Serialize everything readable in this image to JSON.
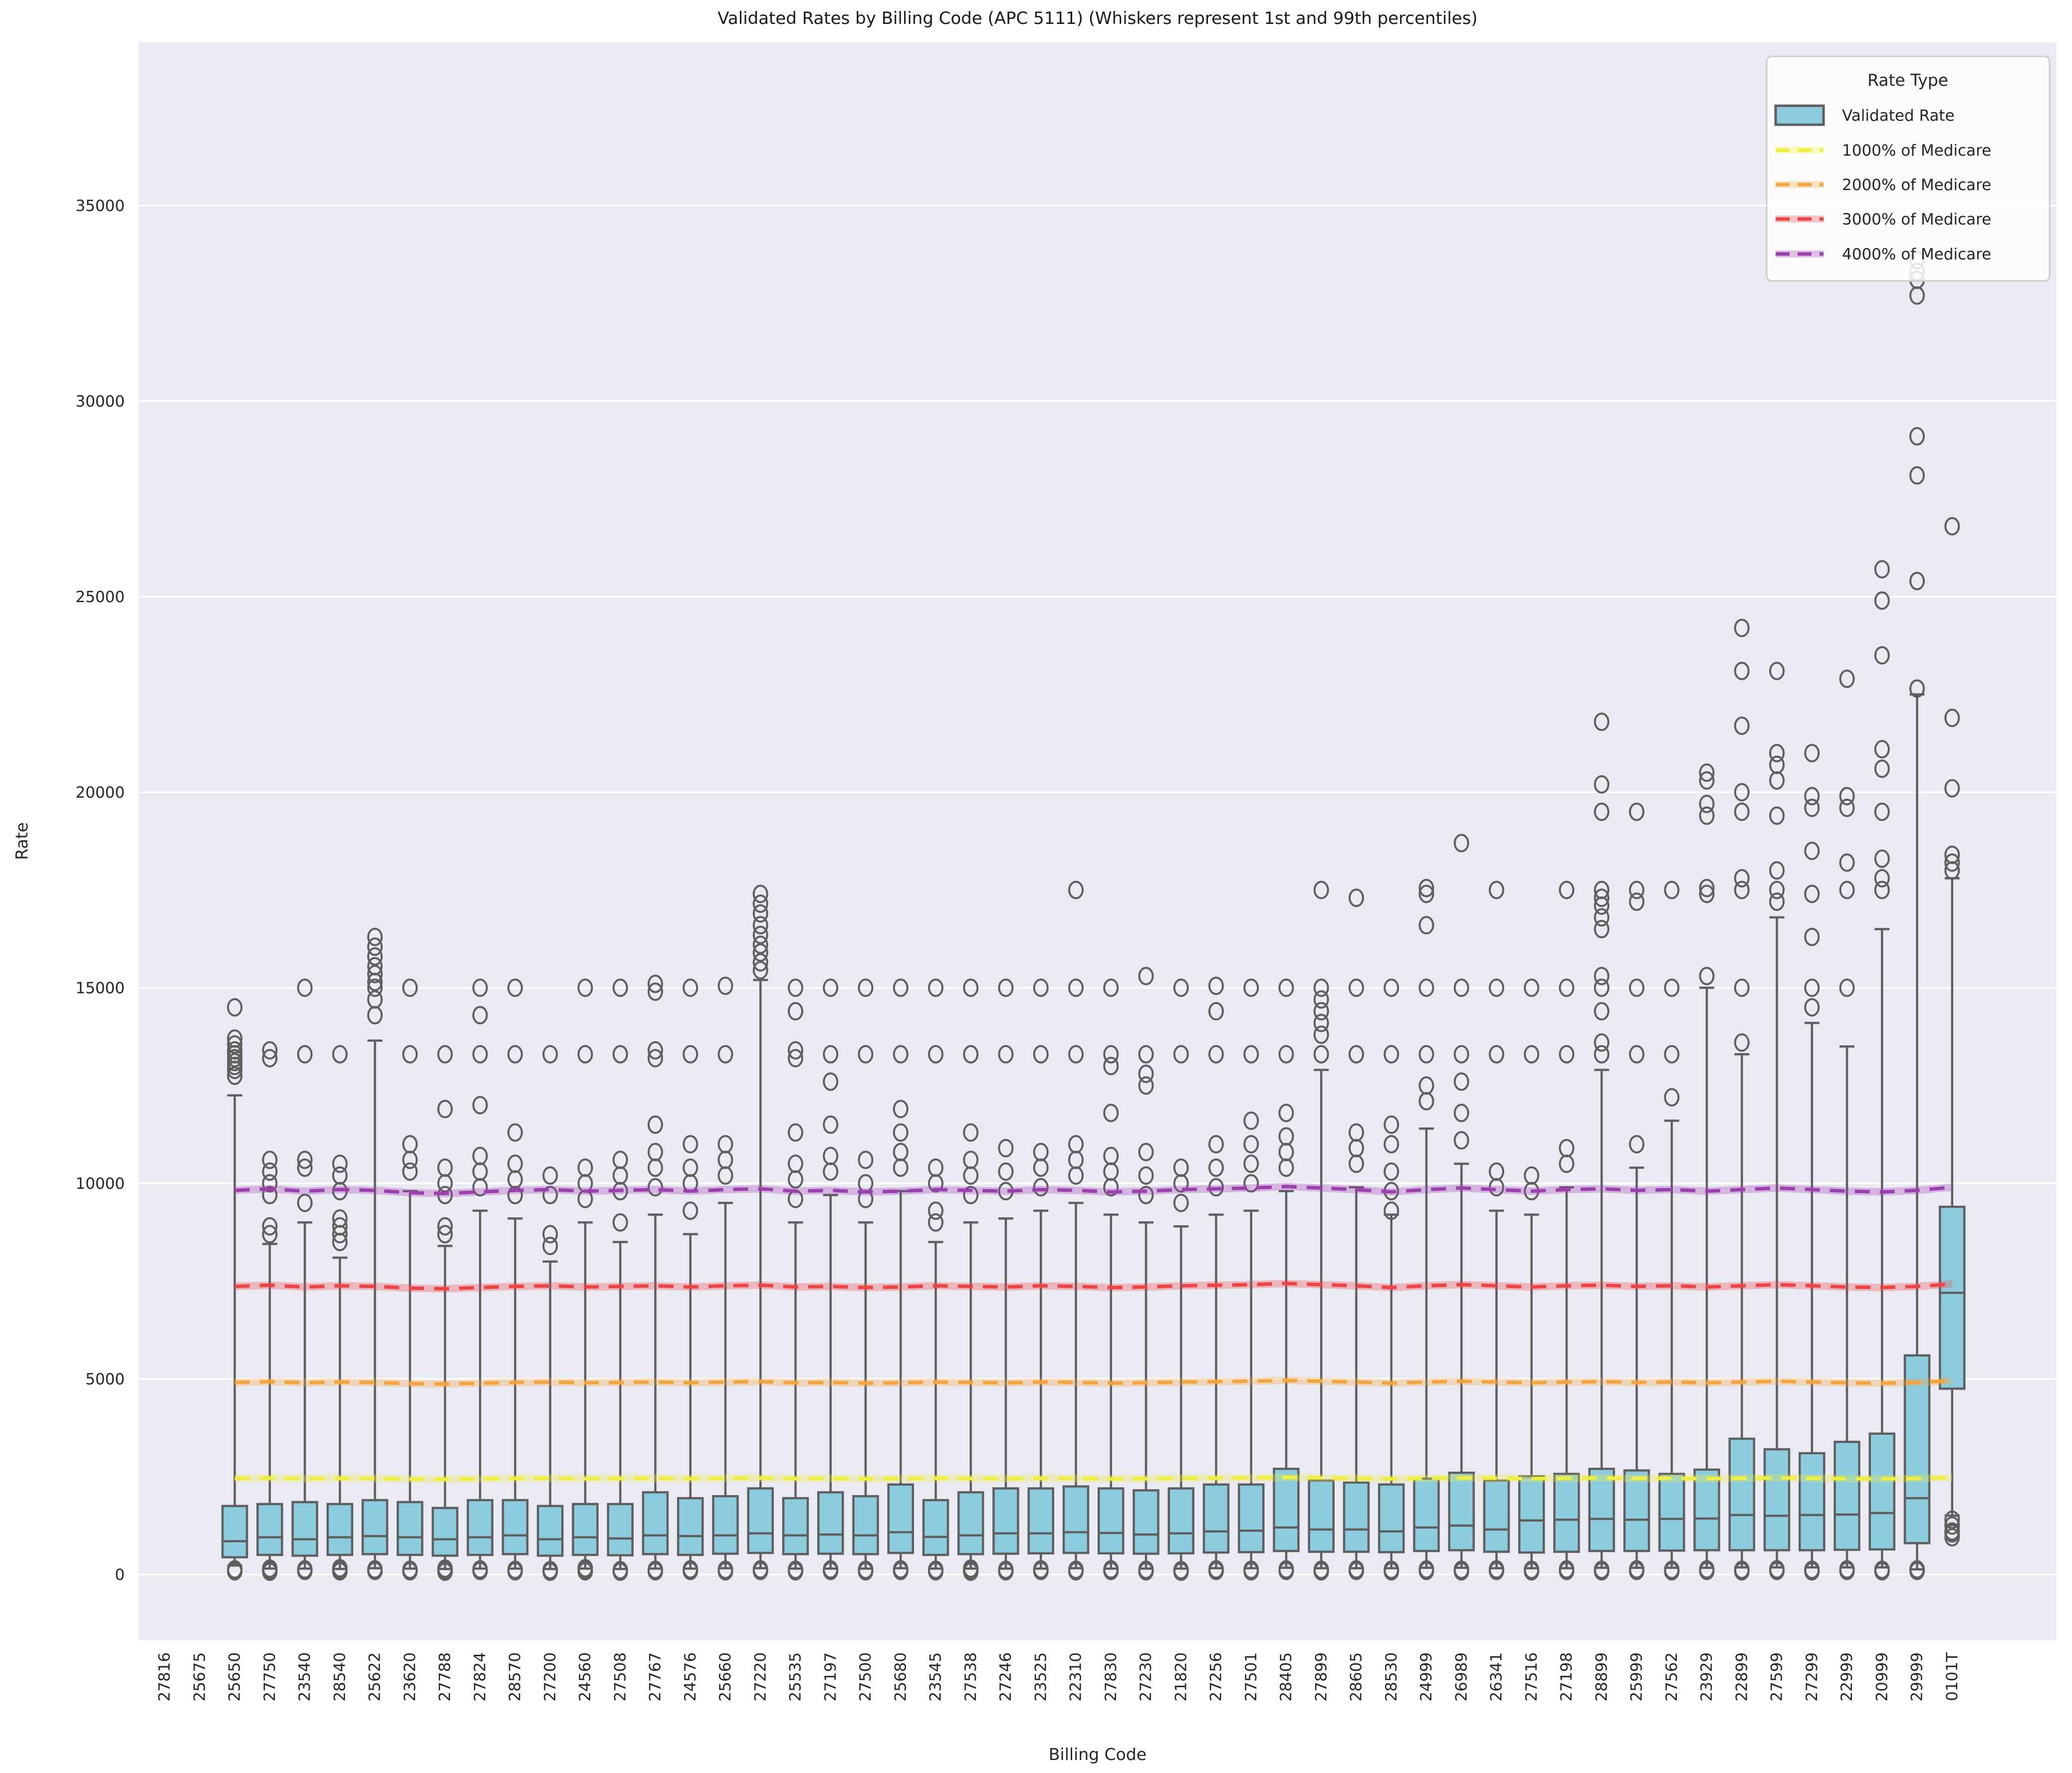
{
  "figure": {
    "title": "Validated Rates by Billing Code (APC 5111) (Whiskers represent 1st and 99th percentiles)",
    "xlabel": "Billing Code",
    "ylabel": "Rate"
  },
  "legend": {
    "title": "Rate Type",
    "position": "upper right",
    "entries": [
      {
        "label": "Validated Rate",
        "type": "box",
        "color": "#8cccdf",
        "edge": "#5f5f5f"
      },
      {
        "label": "1000% of Medicare",
        "type": "dashed-line",
        "color": "#f0ef3c"
      },
      {
        "label": "2000% of Medicare",
        "type": "dashed-line",
        "color": "#f5a43c"
      },
      {
        "label": "3000% of Medicare",
        "type": "dashed-line",
        "color": "#f04343"
      },
      {
        "label": "4000% of Medicare",
        "type": "dashed-line",
        "color": "#9d3fae"
      }
    ]
  },
  "chart_data": {
    "type": "boxplot",
    "title": "Validated Rates by Billing Code (APC 5111) (Whiskers represent 1st and 99th percentiles)",
    "xlabel": "Billing Code",
    "ylabel": "Rate",
    "whisker_note": "Whiskers represent 1st and 99th percentiles",
    "grid": true,
    "ylim": [
      -1700,
      39200
    ],
    "yticks": [
      0,
      5000,
      10000,
      15000,
      20000,
      25000,
      30000,
      35000
    ],
    "box_color": "#8cccdf",
    "line_gray": "#5f5f5f",
    "plot_bg": "#eaeaf2",
    "categories": [
      "27816",
      "25675",
      "25650",
      "27750",
      "23540",
      "28540",
      "25622",
      "23620",
      "27788",
      "27824",
      "28570",
      "27200",
      "24560",
      "27508",
      "27767",
      "24576",
      "25660",
      "27220",
      "25535",
      "27197",
      "27500",
      "25680",
      "23545",
      "27538",
      "27246",
      "23525",
      "22310",
      "27830",
      "27230",
      "21820",
      "27256",
      "27501",
      "28405",
      "27899",
      "28605",
      "28530",
      "24999",
      "26989",
      "26341",
      "27516",
      "27198",
      "28899",
      "25999",
      "27562",
      "23929",
      "22899",
      "27599",
      "27299",
      "22999",
      "20999",
      "29999",
      "0101T"
    ],
    "boxes": [
      null,
      null,
      {
        "w_lo": 230,
        "q1": 440,
        "med": 850,
        "q3": 1750,
        "w_hi": 12250,
        "lo": [
          80,
          130
        ],
        "hi": [
          12750,
          12900,
          13000,
          13100,
          13200,
          13300,
          13400,
          13550,
          13700,
          14500
        ]
      },
      {
        "w_lo": 150,
        "q1": 500,
        "med": 950,
        "q3": 1800,
        "w_hi": 8450,
        "lo": [
          70,
          110,
          150
        ],
        "hi": [
          8700,
          8900,
          9700,
          10000,
          10300,
          10600,
          13200,
          13400
        ]
      },
      {
        "w_lo": 150,
        "q1": 480,
        "med": 900,
        "q3": 1850,
        "w_hi": 9000,
        "lo": [
          90,
          130
        ],
        "hi": [
          9500,
          10400,
          10600,
          13300,
          15000
        ]
      },
      {
        "w_lo": 140,
        "q1": 500,
        "med": 950,
        "q3": 1800,
        "w_hi": 8100,
        "lo": [
          80,
          120,
          160
        ],
        "hi": [
          8500,
          8700,
          8900,
          9100,
          9800,
          10200,
          10500,
          13300
        ]
      },
      {
        "w_lo": 160,
        "q1": 520,
        "med": 980,
        "q3": 1900,
        "w_hi": 13650,
        "lo": [
          90,
          130
        ],
        "hi": [
          14300,
          14700,
          15000,
          15150,
          15350,
          15550,
          15800,
          16050,
          16300
        ]
      },
      {
        "w_lo": 150,
        "q1": 500,
        "med": 950,
        "q3": 1850,
        "w_hi": 9800,
        "lo": [
          80,
          120
        ],
        "hi": [
          10300,
          10600,
          11000,
          13300,
          15000
        ]
      },
      {
        "w_lo": 140,
        "q1": 480,
        "med": 900,
        "q3": 1700,
        "w_hi": 8400,
        "lo": [
          70,
          110,
          150
        ],
        "hi": [
          8700,
          8900,
          9700,
          10000,
          10400,
          11900,
          13300
        ]
      },
      {
        "w_lo": 150,
        "q1": 500,
        "med": 950,
        "q3": 1900,
        "w_hi": 9300,
        "lo": [
          90,
          130
        ],
        "hi": [
          9900,
          10300,
          10700,
          12000,
          13300,
          14300,
          15000
        ]
      },
      {
        "w_lo": 150,
        "q1": 520,
        "med": 1000,
        "q3": 1900,
        "w_hi": 9100,
        "lo": [
          80,
          120
        ],
        "hi": [
          9700,
          10100,
          10500,
          11300,
          13300,
          15000
        ]
      },
      {
        "w_lo": 140,
        "q1": 480,
        "med": 900,
        "q3": 1750,
        "w_hi": 8000,
        "lo": [
          70,
          110
        ],
        "hi": [
          8400,
          8700,
          9700,
          10200,
          13300
        ]
      },
      {
        "w_lo": 150,
        "q1": 500,
        "med": 950,
        "q3": 1800,
        "w_hi": 9000,
        "lo": [
          80,
          120,
          160
        ],
        "hi": [
          9600,
          10000,
          10400,
          13300,
          15000
        ]
      },
      {
        "w_lo": 140,
        "q1": 490,
        "med": 920,
        "q3": 1800,
        "w_hi": 8500,
        "lo": [
          70,
          110
        ],
        "hi": [
          9000,
          9800,
          10200,
          10600,
          13300,
          15000
        ]
      },
      {
        "w_lo": 150,
        "q1": 520,
        "med": 1000,
        "q3": 2100,
        "w_hi": 9200,
        "lo": [
          80,
          120
        ],
        "hi": [
          9900,
          10400,
          10800,
          11500,
          13200,
          13400,
          14900,
          15100
        ]
      },
      {
        "w_lo": 150,
        "q1": 500,
        "med": 980,
        "q3": 1950,
        "w_hi": 8700,
        "lo": [
          90,
          130
        ],
        "hi": [
          9300,
          10000,
          10400,
          11000,
          13300,
          15000
        ]
      },
      {
        "w_lo": 160,
        "q1": 530,
        "med": 1000,
        "q3": 2000,
        "w_hi": 9500,
        "lo": [
          80,
          120
        ],
        "hi": [
          10200,
          10600,
          11000,
          13300,
          15050
        ]
      },
      {
        "w_lo": 160,
        "q1": 550,
        "med": 1050,
        "q3": 2200,
        "w_hi": 15200,
        "lo": [
          90,
          130
        ],
        "hi": [
          15450,
          15650,
          15900,
          16100,
          16350,
          16600,
          16900,
          17150,
          17400
        ]
      },
      {
        "w_lo": 150,
        "q1": 520,
        "med": 1000,
        "q3": 1950,
        "w_hi": 9000,
        "lo": [
          80,
          120
        ],
        "hi": [
          9600,
          10100,
          10500,
          11300,
          13200,
          13400,
          14400,
          15000
        ]
      },
      {
        "w_lo": 150,
        "q1": 530,
        "med": 1020,
        "q3": 2100,
        "w_hi": 9700,
        "lo": [
          90,
          130
        ],
        "hi": [
          10300,
          10700,
          11500,
          12600,
          13300,
          15000
        ]
      },
      {
        "w_lo": 150,
        "q1": 520,
        "med": 1000,
        "q3": 2000,
        "w_hi": 9000,
        "lo": [
          80,
          120
        ],
        "hi": [
          9600,
          10000,
          10600,
          13300,
          15000
        ]
      },
      {
        "w_lo": 160,
        "q1": 550,
        "med": 1080,
        "q3": 2300,
        "w_hi": 9800,
        "lo": [
          90,
          130
        ],
        "hi": [
          10400,
          10800,
          11300,
          11900,
          13300,
          15000
        ]
      },
      {
        "w_lo": 150,
        "q1": 500,
        "med": 960,
        "q3": 1900,
        "w_hi": 8500,
        "lo": [
          80,
          120
        ],
        "hi": [
          9000,
          9300,
          10000,
          10400,
          13300,
          15000
        ]
      },
      {
        "w_lo": 150,
        "q1": 520,
        "med": 1000,
        "q3": 2100,
        "w_hi": 9000,
        "lo": [
          70,
          110,
          150
        ],
        "hi": [
          9700,
          10200,
          10600,
          11300,
          13300,
          15000
        ]
      },
      {
        "w_lo": 150,
        "q1": 530,
        "med": 1050,
        "q3": 2200,
        "w_hi": 9100,
        "lo": [
          80,
          120
        ],
        "hi": [
          9800,
          10300,
          10900,
          13300,
          15000
        ]
      },
      {
        "w_lo": 150,
        "q1": 540,
        "med": 1050,
        "q3": 2200,
        "w_hi": 9300,
        "lo": [
          90,
          130
        ],
        "hi": [
          9900,
          10400,
          10800,
          13300,
          15000
        ]
      },
      {
        "w_lo": 160,
        "q1": 550,
        "med": 1080,
        "q3": 2250,
        "w_hi": 9500,
        "lo": [
          80,
          120
        ],
        "hi": [
          10200,
          10600,
          11000,
          13300,
          15000,
          17500
        ]
      },
      {
        "w_lo": 150,
        "q1": 540,
        "med": 1060,
        "q3": 2200,
        "w_hi": 9200,
        "lo": [
          90,
          130
        ],
        "hi": [
          9900,
          10300,
          10700,
          11800,
          13000,
          13300,
          15000
        ]
      },
      {
        "w_lo": 150,
        "q1": 530,
        "med": 1020,
        "q3": 2150,
        "w_hi": 9000,
        "lo": [
          80,
          120
        ],
        "hi": [
          9700,
          10200,
          10800,
          12500,
          12800,
          13300,
          15300
        ]
      },
      {
        "w_lo": 150,
        "q1": 540,
        "med": 1050,
        "q3": 2200,
        "w_hi": 8900,
        "lo": [
          70,
          110
        ],
        "hi": [
          9500,
          10000,
          10400,
          13300,
          15000
        ]
      },
      {
        "w_lo": 160,
        "q1": 560,
        "med": 1100,
        "q3": 2300,
        "w_hi": 9200,
        "lo": [
          90,
          130
        ],
        "hi": [
          9900,
          10400,
          11000,
          13300,
          14400,
          15050
        ]
      },
      {
        "w_lo": 160,
        "q1": 570,
        "med": 1120,
        "q3": 2300,
        "w_hi": 9300,
        "lo": [
          80,
          120
        ],
        "hi": [
          10000,
          10500,
          11000,
          11600,
          13300,
          15000
        ]
      },
      {
        "w_lo": 170,
        "q1": 600,
        "med": 1200,
        "q3": 2700,
        "w_hi": 9800,
        "lo": [
          90,
          130
        ],
        "hi": [
          10400,
          10800,
          11200,
          11800,
          13300,
          15000
        ]
      },
      {
        "w_lo": 160,
        "q1": 580,
        "med": 1150,
        "q3": 2400,
        "w_hi": 12900,
        "lo": [
          80,
          120
        ],
        "hi": [
          13300,
          13800,
          14100,
          14400,
          14700,
          15000,
          17500
        ]
      },
      {
        "w_lo": 160,
        "q1": 580,
        "med": 1150,
        "q3": 2350,
        "w_hi": 9900,
        "lo": [
          90,
          130
        ],
        "hi": [
          10500,
          10900,
          11300,
          13300,
          15000,
          17300
        ]
      },
      {
        "w_lo": 160,
        "q1": 570,
        "med": 1100,
        "q3": 2300,
        "w_hi": 9200,
        "lo": [
          80,
          120
        ],
        "hi": [
          9300,
          9800,
          10300,
          11000,
          11500,
          13300,
          15000
        ]
      },
      {
        "w_lo": 170,
        "q1": 600,
        "med": 1200,
        "q3": 2450,
        "w_hi": 11400,
        "lo": [
          90,
          130
        ],
        "hi": [
          12100,
          12500,
          13300,
          15000,
          16600,
          17400,
          17550
        ]
      },
      {
        "w_lo": 170,
        "q1": 620,
        "med": 1250,
        "q3": 2600,
        "w_hi": 10500,
        "lo": [
          80,
          120
        ],
        "hi": [
          11100,
          11800,
          12600,
          13300,
          15000,
          18700
        ]
      },
      {
        "w_lo": 160,
        "q1": 580,
        "med": 1150,
        "q3": 2400,
        "w_hi": 9300,
        "lo": [
          90,
          130
        ],
        "hi": [
          9900,
          10300,
          13300,
          15000,
          17500
        ]
      },
      {
        "w_lo": 160,
        "q1": 560,
        "med": 1380,
        "q3": 2510,
        "w_hi": 9200,
        "lo": [
          80,
          120
        ],
        "hi": [
          9800,
          10200,
          13300,
          15000
        ]
      },
      {
        "w_lo": 160,
        "q1": 580,
        "med": 1400,
        "q3": 2570,
        "w_hi": 9900,
        "lo": [
          90,
          130
        ],
        "hi": [
          10500,
          10900,
          13300,
          15000,
          17500
        ]
      },
      {
        "w_lo": 170,
        "q1": 600,
        "med": 1420,
        "q3": 2700,
        "w_hi": 12900,
        "lo": [
          80,
          120
        ],
        "hi": [
          13300,
          13600,
          14400,
          15000,
          15300,
          16500,
          16800,
          17100,
          17300,
          17500,
          19500,
          20200,
          21800
        ]
      },
      {
        "w_lo": 170,
        "q1": 600,
        "med": 1400,
        "q3": 2660,
        "w_hi": 10400,
        "lo": [
          90,
          130
        ],
        "hi": [
          11000,
          13300,
          15000,
          17200,
          17500,
          19500
        ]
      },
      {
        "w_lo": 170,
        "q1": 610,
        "med": 1420,
        "q3": 2570,
        "w_hi": 11600,
        "lo": [
          80,
          120
        ],
        "hi": [
          12200,
          13300,
          15000,
          17500
        ]
      },
      {
        "w_lo": 170,
        "q1": 620,
        "med": 1430,
        "q3": 2680,
        "w_hi": 15000,
        "lo": [
          90,
          130
        ],
        "hi": [
          15300,
          17400,
          17550,
          19400,
          19700,
          20300,
          20500
        ]
      },
      {
        "w_lo": 180,
        "q1": 620,
        "med": 1520,
        "q3": 3470,
        "w_hi": 13300,
        "lo": [
          80,
          120
        ],
        "hi": [
          13600,
          15000,
          17500,
          17800,
          19500,
          20000,
          21700,
          23100,
          24200
        ]
      },
      {
        "w_lo": 180,
        "q1": 620,
        "med": 1500,
        "q3": 3200,
        "w_hi": 16800,
        "lo": [
          90,
          130
        ],
        "hi": [
          17200,
          17500,
          18000,
          19400,
          20300,
          20700,
          21000,
          23100
        ]
      },
      {
        "w_lo": 180,
        "q1": 620,
        "med": 1520,
        "q3": 3100,
        "w_hi": 14100,
        "lo": [
          80,
          120
        ],
        "hi": [
          14500,
          15000,
          16300,
          17400,
          18500,
          19600,
          19900,
          21000
        ]
      },
      {
        "w_lo": 180,
        "q1": 630,
        "med": 1530,
        "q3": 3390,
        "w_hi": 13500,
        "lo": [
          90,
          130
        ],
        "hi": [
          15000,
          17500,
          18200,
          19600,
          19900,
          22900
        ]
      },
      {
        "w_lo": 180,
        "q1": 640,
        "med": 1570,
        "q3": 3600,
        "w_hi": 16500,
        "lo": [
          80,
          120
        ],
        "hi": [
          17500,
          17800,
          18300,
          19500,
          20600,
          21100,
          23500,
          24900,
          25700
        ]
      },
      {
        "w_lo": 130,
        "q1": 800,
        "med": 1950,
        "q3": 5600,
        "w_hi": 22500,
        "lo": [
          90,
          130
        ],
        "hi": [
          22650,
          25400,
          28100,
          29100,
          32700,
          33100,
          33300,
          33600
        ]
      },
      {
        "w_lo": 1505,
        "q1": 4750,
        "med": 7200,
        "q3": 9400,
        "w_hi": 17800,
        "lo": [
          950,
          1050,
          1100,
          1250,
          1400
        ],
        "hi": [
          18000,
          18200,
          18400,
          20100,
          21900,
          26800
        ]
      }
    ],
    "medicare_base_rate": [
      null,
      null,
      245.5,
      246.5,
      245.0,
      246.0,
      245.5,
      244.0,
      243.5,
      244.5,
      245.5,
      246.0,
      245.0,
      245.5,
      246.0,
      245.0,
      246.0,
      246.5,
      245.0,
      245.5,
      244.5,
      245.0,
      246.0,
      245.5,
      245.0,
      246.0,
      245.5,
      244.5,
      245.0,
      246.0,
      246.5,
      247.0,
      248.0,
      247.0,
      246.0,
      244.5,
      246.0,
      247.0,
      246.0,
      245.0,
      246.0,
      246.5,
      245.5,
      246.0,
      245.0,
      246.0,
      247.0,
      246.0,
      245.0,
      244.5,
      245.5,
      247.5
    ],
    "reference_lines": [
      {
        "label": "1000% of Medicare",
        "multiple": 10,
        "color": "#f0ef3c",
        "approx_value": 2450
      },
      {
        "label": "2000% of Medicare",
        "multiple": 20,
        "color": "#f5a43c",
        "approx_value": 4900
      },
      {
        "label": "3000% of Medicare",
        "multiple": 30,
        "color": "#f04343",
        "approx_value": 7350
      },
      {
        "label": "4000% of Medicare",
        "multiple": 40,
        "color": "#9d3fae",
        "approx_value": 9800
      }
    ]
  }
}
